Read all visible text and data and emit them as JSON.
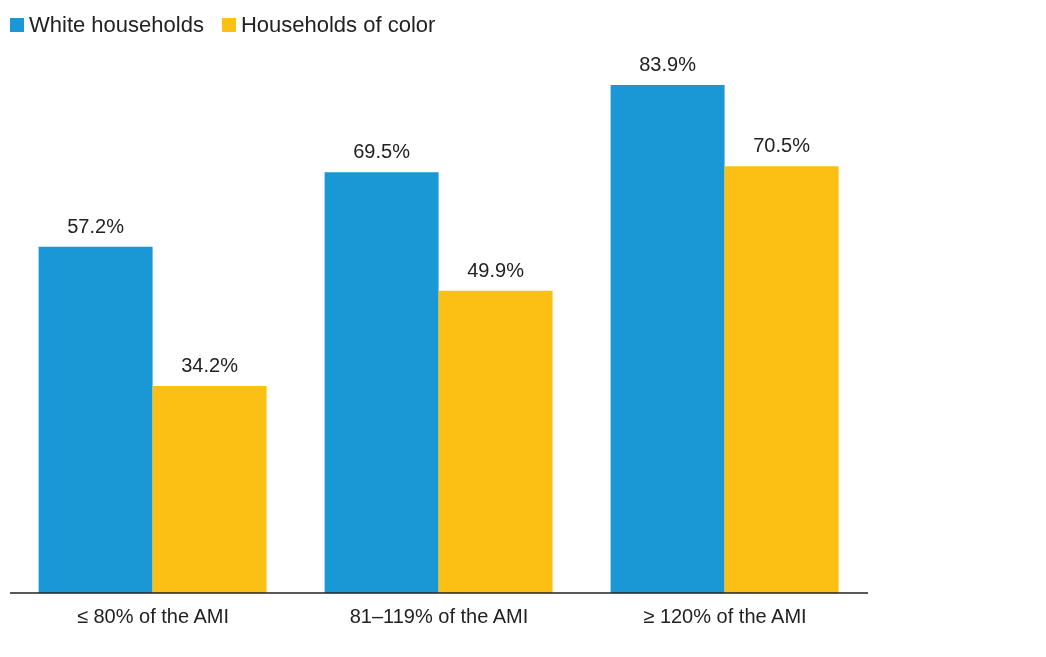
{
  "chart_data": {
    "type": "bar",
    "categories": [
      "≤ 80% of the AMI",
      "81–119% of the AMI",
      "≥ 120% of the AMI"
    ],
    "series": [
      {
        "name": "White households",
        "color": "#1a97d5",
        "values": [
          57.2,
          69.5,
          83.9
        ],
        "value_labels": [
          "57.2%",
          "69.5%",
          "83.9%"
        ]
      },
      {
        "name": "Households of color",
        "color": "#fcbf14",
        "values": [
          34.2,
          49.9,
          70.5
        ],
        "value_labels": [
          "34.2%",
          "49.9%",
          "70.5%"
        ]
      }
    ],
    "legend": "top left",
    "grid": false
  }
}
